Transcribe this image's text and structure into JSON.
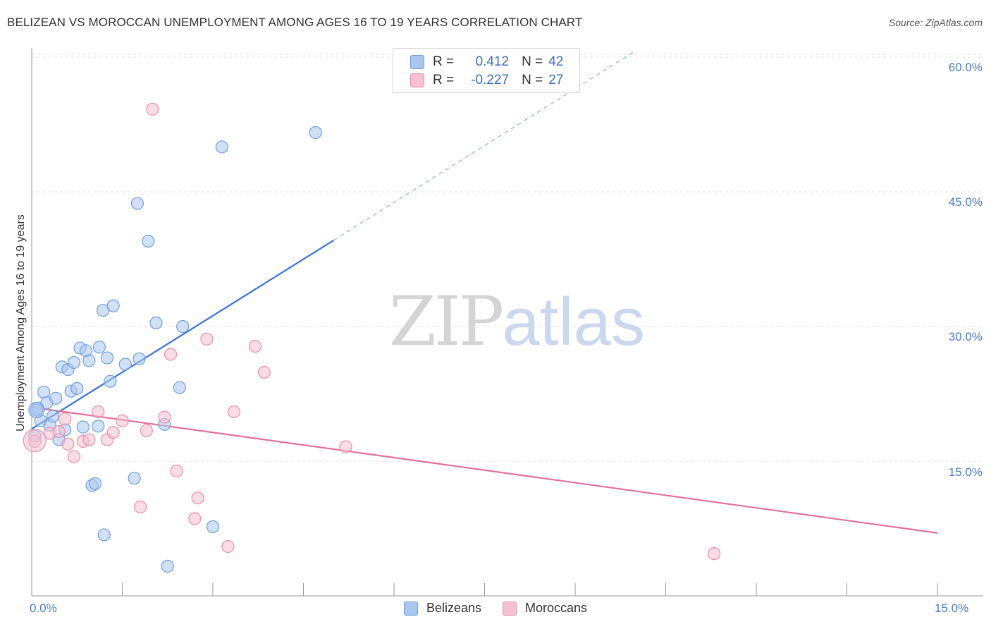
{
  "title": "BELIZEAN VS MOROCCAN UNEMPLOYMENT AMONG AGES 16 TO 19 YEARS CORRELATION CHART",
  "source": "Source: ZipAtlas.com",
  "watermark": {
    "zip": "ZIP",
    "atlas": "atlas"
  },
  "legend": {
    "rows": [
      {
        "r_label": "R =",
        "r_value": "0.412",
        "n_label": "N =",
        "n_value": "42",
        "color": "#a9c7ee",
        "border": "#6f9fdc"
      },
      {
        "r_label": "R =",
        "r_value": "-0.227",
        "n_label": "N =",
        "n_value": "27",
        "color": "#f5c0d0",
        "border": "#e890ab"
      }
    ]
  },
  "bottom_legend": [
    {
      "label": "Belizeans",
      "color": "#a9c7ee",
      "border": "#6f9fdc"
    },
    {
      "label": "Moroccans",
      "color": "#f5c0d0",
      "border": "#e890ab"
    }
  ],
  "chart_data": {
    "type": "scatter",
    "title": "BELIZEAN VS MOROCCAN UNEMPLOYMENT AMONG AGES 16 TO 19 YEARS CORRELATION CHART",
    "xlabel": "",
    "ylabel": "Unemployment Among Ages 16 to 19 years",
    "xlim": [
      0,
      15
    ],
    "ylim": [
      0,
      63
    ],
    "x_tick_labels": [
      "0.0%",
      "15.0%"
    ],
    "y_tick_labels": [
      "15.0%",
      "30.0%",
      "45.0%",
      "60.0%"
    ],
    "y_ticks": [
      15,
      30,
      45,
      60
    ],
    "grid": true,
    "series": [
      {
        "name": "Belizeans",
        "color": "#6f9fdc",
        "fill": "#a9c7ee",
        "points": [
          [
            0.05,
            17.8
          ],
          [
            0.1,
            20.9
          ],
          [
            0.15,
            19.5
          ],
          [
            0.2,
            22.7
          ],
          [
            0.25,
            21.5
          ],
          [
            0.3,
            19.0
          ],
          [
            0.35,
            20.0
          ],
          [
            0.4,
            22.0
          ],
          [
            0.45,
            17.4
          ],
          [
            0.5,
            25.5
          ],
          [
            0.55,
            18.5
          ],
          [
            0.6,
            25.2
          ],
          [
            0.65,
            22.8
          ],
          [
            0.7,
            26.0
          ],
          [
            0.75,
            23.1
          ],
          [
            0.8,
            27.6
          ],
          [
            0.85,
            18.8
          ],
          [
            0.9,
            27.3
          ],
          [
            0.95,
            26.2
          ],
          [
            1.0,
            12.3
          ],
          [
            1.05,
            12.5
          ],
          [
            1.1,
            18.9
          ],
          [
            1.12,
            27.7
          ],
          [
            1.18,
            31.8
          ],
          [
            1.2,
            6.8
          ],
          [
            1.25,
            26.5
          ],
          [
            1.3,
            23.9
          ],
          [
            1.35,
            32.3
          ],
          [
            1.55,
            25.8
          ],
          [
            1.7,
            13.1
          ],
          [
            1.75,
            43.7
          ],
          [
            1.78,
            26.4
          ],
          [
            1.93,
            39.5
          ],
          [
            2.06,
            30.4
          ],
          [
            2.2,
            19.1
          ],
          [
            2.25,
            3.3
          ],
          [
            2.45,
            23.2
          ],
          [
            2.5,
            30.0
          ],
          [
            3.0,
            7.7
          ],
          [
            3.15,
            50.0
          ],
          [
            4.7,
            51.6
          ],
          [
            0.08,
            20.7
          ]
        ]
      },
      {
        "name": "Moroccans",
        "color": "#e890ab",
        "fill": "#f5c0d0",
        "points": [
          [
            0.05,
            17.2
          ],
          [
            0.3,
            18.1
          ],
          [
            0.55,
            19.7
          ],
          [
            0.6,
            16.9
          ],
          [
            0.7,
            15.5
          ],
          [
            0.85,
            17.2
          ],
          [
            0.95,
            17.4
          ],
          [
            1.1,
            20.5
          ],
          [
            1.25,
            17.4
          ],
          [
            1.35,
            18.2
          ],
          [
            1.5,
            19.5
          ],
          [
            1.8,
            9.9
          ],
          [
            1.9,
            18.4
          ],
          [
            2.0,
            54.2
          ],
          [
            2.2,
            19.9
          ],
          [
            2.3,
            26.9
          ],
          [
            2.4,
            13.9
          ],
          [
            2.7,
            8.6
          ],
          [
            2.75,
            10.9
          ],
          [
            2.9,
            28.6
          ],
          [
            3.25,
            5.5
          ],
          [
            3.35,
            20.5
          ],
          [
            3.7,
            27.8
          ],
          [
            3.85,
            24.9
          ],
          [
            5.2,
            16.6
          ],
          [
            11.3,
            4.7
          ],
          [
            0.45,
            18.3
          ]
        ]
      }
    ],
    "trend_lines": [
      {
        "series": "Belizeans",
        "from": [
          0,
          18.6
        ],
        "to": [
          5.0,
          39.6
        ],
        "dashed_to": [
          10.0,
          60.7
        ]
      },
      {
        "series": "Moroccans",
        "from": [
          0,
          21.0
        ],
        "to": [
          15.0,
          7.0
        ]
      }
    ]
  }
}
